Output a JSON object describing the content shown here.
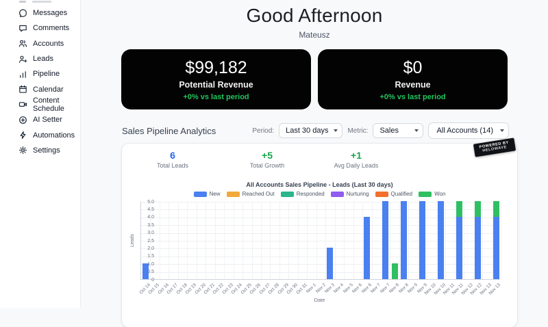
{
  "sidebar": {
    "items": [
      {
        "label": "Messages",
        "icon": "chat-bubble-icon"
      },
      {
        "label": "Comments",
        "icon": "comment-icon"
      },
      {
        "label": "Accounts",
        "icon": "people-icon"
      },
      {
        "label": "Leads",
        "icon": "person-plus-icon"
      },
      {
        "label": "Pipeline",
        "icon": "bar-chart-icon"
      },
      {
        "label": "Calendar",
        "icon": "calendar-icon"
      },
      {
        "label": "Content Schedule",
        "icon": "video-camera-icon"
      },
      {
        "label": "AI Setter",
        "icon": "ai-circle-icon"
      },
      {
        "label": "Automations",
        "icon": "lightning-icon"
      },
      {
        "label": "Settings",
        "icon": "gear-icon"
      }
    ]
  },
  "header": {
    "greeting": "Good Afternoon",
    "user": "Mateusz"
  },
  "kpi_cards": [
    {
      "value": "$99,182",
      "label": "Potential Revenue",
      "delta": "+0% vs last period",
      "delta_color": "#22c55e"
    },
    {
      "value": "$0",
      "label": "Revenue",
      "delta": "+0% vs last period",
      "delta_color": "#22c55e"
    }
  ],
  "analytics": {
    "section_title": "Sales Pipeline Analytics",
    "period_label": "Period:",
    "period_value": "Last 30 days",
    "metric_label": "Metric:",
    "metric_value": "Sales",
    "accounts_value": "All Accounts (14)",
    "ribbon_line1": "POWERED BY",
    "ribbon_line2": "HELOWAVE",
    "stats": [
      {
        "value": "6",
        "label": "Total Leads",
        "color": "#2563eb"
      },
      {
        "value": "+5",
        "label": "Total Growth",
        "color": "#16a34a"
      },
      {
        "value": "+1",
        "label": "Avg Daily Leads",
        "color": "#16a34a"
      }
    ]
  },
  "chart_data": {
    "type": "bar",
    "stacked": true,
    "title": "All Accounts Sales Pipeline - Leads (Last 30 days)",
    "xlabel": "Date",
    "ylabel": "Leads",
    "ylim": [
      0,
      5
    ],
    "ytick_step": 0.5,
    "grid": true,
    "legend_position": "top",
    "categories": [
      "Oct 14",
      "Oct 15",
      "Oct 16",
      "Oct 17",
      "Oct 18",
      "Oct 19",
      "Oct 20",
      "Oct 21",
      "Oct 22",
      "Oct 23",
      "Oct 24",
      "Oct 25",
      "Oct 26",
      "Oct 27",
      "Oct 28",
      "Oct 29",
      "Oct 30",
      "Oct 31",
      "Nov 1",
      "Nov 2",
      "Nov 3",
      "Nov 4",
      "Nov 5",
      "Nov 6",
      "Nov 6",
      "Nov 7",
      "Nov 7",
      "Nov 8",
      "Nov 8",
      "Nov 9",
      "Nov 9",
      "Nov 10",
      "Nov 10",
      "Nov 11",
      "Nov 11",
      "Nov 12",
      "Nov 12",
      "Nov 13",
      "Nov 13"
    ],
    "series": [
      {
        "name": "New",
        "color": "#4a80f0",
        "values": [
          1,
          0,
          0,
          0,
          0,
          0,
          0,
          0,
          0,
          0,
          0,
          0,
          0,
          0,
          0,
          0,
          0,
          0,
          0,
          0,
          2,
          0,
          0,
          0,
          4,
          0,
          5,
          0,
          5,
          0,
          5,
          0,
          5,
          0,
          4,
          0,
          4,
          0,
          4
        ]
      },
      {
        "name": "Reached Out",
        "color": "#f3a83b",
        "values": [
          0,
          0,
          0,
          0,
          0,
          0,
          0,
          0,
          0,
          0,
          0,
          0,
          0,
          0,
          0,
          0,
          0,
          0,
          0,
          0,
          0,
          0,
          0,
          0,
          0,
          0,
          0,
          0,
          0,
          0,
          0,
          0,
          0,
          0,
          0,
          0,
          0,
          0,
          0
        ]
      },
      {
        "name": "Responded",
        "color": "#2ab58c",
        "values": [
          0,
          0,
          0,
          0,
          0,
          0,
          0,
          0,
          0,
          0,
          0,
          0,
          0,
          0,
          0,
          0,
          0,
          0,
          0,
          0,
          0,
          0,
          0,
          0,
          0,
          0,
          0,
          0,
          0,
          0,
          0,
          0,
          0,
          0,
          0,
          0,
          0,
          0,
          0
        ]
      },
      {
        "name": "Nurturing",
        "color": "#8f5bf0",
        "values": [
          0,
          0,
          0,
          0,
          0,
          0,
          0,
          0,
          0,
          0,
          0,
          0,
          0,
          0,
          0,
          0,
          0,
          0,
          0,
          0,
          0,
          0,
          0,
          0,
          0,
          0,
          0,
          0,
          0,
          0,
          0,
          0,
          0,
          0,
          0,
          0,
          0,
          0,
          0
        ]
      },
      {
        "name": "Qualified",
        "color": "#f26f2d",
        "values": [
          0,
          0,
          0,
          0,
          0,
          0,
          0,
          0,
          0,
          0,
          0,
          0,
          0,
          0,
          0,
          0,
          0,
          0,
          0,
          0,
          0,
          0,
          0,
          0,
          0,
          0,
          0,
          0,
          0,
          0,
          0,
          0,
          0,
          0,
          0,
          0,
          0,
          0,
          0
        ]
      },
      {
        "name": "Won",
        "color": "#2fbf63",
        "values": [
          0,
          0,
          0,
          0,
          0,
          0,
          0,
          0,
          0,
          0,
          0,
          0,
          0,
          0,
          0,
          0,
          0,
          0,
          0,
          0,
          0,
          0,
          0,
          0,
          0,
          0,
          0,
          1,
          0,
          0,
          0,
          0,
          0,
          0,
          1,
          0,
          1,
          0,
          1
        ]
      }
    ]
  }
}
